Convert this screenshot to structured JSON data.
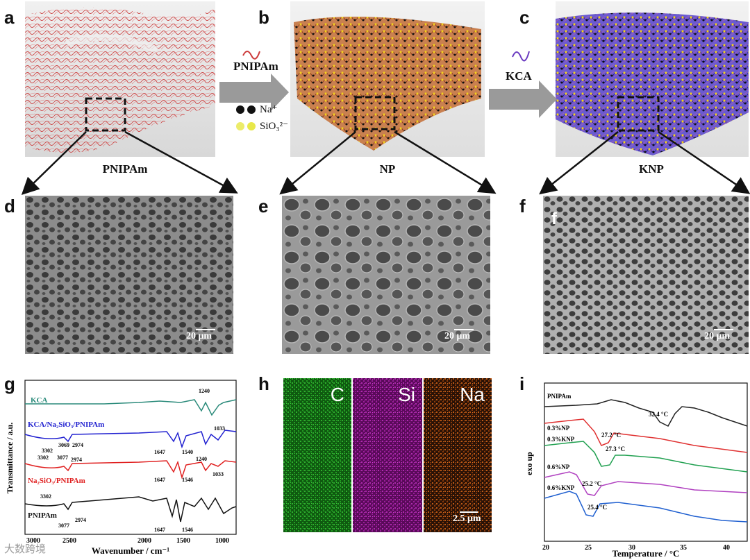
{
  "panels": {
    "a": {
      "letter": "a",
      "caption": "PNIPAm"
    },
    "b": {
      "letter": "b",
      "caption": "NP"
    },
    "c": {
      "letter": "c",
      "caption": "KNP"
    },
    "d": {
      "letter": "d",
      "scale": "20 μm"
    },
    "e": {
      "letter": "e",
      "scale": "20 μm"
    },
    "f": {
      "letter": "f",
      "inner_letter": "f",
      "scale": "20 μm"
    },
    "g": {
      "letter": "g"
    },
    "h": {
      "letter": "h",
      "scale": "2.5 μm",
      "maps": [
        "C",
        "Si",
        "Na"
      ]
    },
    "i": {
      "letter": "i"
    }
  },
  "arrows": {
    "ab_label": "PNIPAm",
    "bc_label": "KCA",
    "legend": [
      {
        "label": "Na⁺",
        "color": "#111111"
      },
      {
        "label": "SiO₃²⁻",
        "color": "#e8e84a"
      }
    ]
  },
  "colors": {
    "pnipam": "#cc3a3a",
    "np": "#b5651d",
    "knp": "#4b3ca8",
    "eds_c": "#1e8f1e",
    "eds_si": "#9a1e9a",
    "eds_na": "#b8520f"
  },
  "ftir": {
    "ylabel": "Transmittance / a.u.",
    "xlabel": "Wavenumber / cm⁻¹",
    "xticks": [
      "3000",
      "2500",
      "2000",
      "1500",
      "1000"
    ],
    "series": [
      {
        "name": "KCA",
        "color": "#2a8a7a",
        "peaks": [
          "1240"
        ]
      },
      {
        "name": "KCA/Na₂SiO₃/PNIPAm",
        "color": "#2020d0",
        "peaks": [
          "3302",
          "3069",
          "2974",
          "1647",
          "1540",
          "1240",
          "1033"
        ]
      },
      {
        "name": "Na₂SiO₃/PNIPAm",
        "color": "#e02020",
        "peaks": [
          "3302",
          "3077",
          "2974",
          "1647",
          "1546",
          "1033"
        ]
      },
      {
        "name": "PNIPAm",
        "color": "#111111",
        "peaks": [
          "3302",
          "3077",
          "2974",
          "1647",
          "1546"
        ]
      }
    ]
  },
  "dsc": {
    "ylabel": "exo up",
    "xlabel": "Temperature / °C",
    "xticks": [
      "20",
      "25",
      "30",
      "35",
      "40"
    ],
    "series": [
      {
        "name": "PNIPAm",
        "color": "#222222",
        "peak": "32.4 °C"
      },
      {
        "name": "0.3%NP",
        "color": "#e03030",
        "peak": "27.2 °C"
      },
      {
        "name": "0.3%KNP",
        "color": "#20a050",
        "peak": "27.3 °C"
      },
      {
        "name": "0.6%NP",
        "color": "#b040c0",
        "peak": "25.2 °C"
      },
      {
        "name": "0.6%KNP",
        "color": "#2060d0",
        "peak": "25.4 °C"
      }
    ]
  },
  "watermark": "大数跨境"
}
